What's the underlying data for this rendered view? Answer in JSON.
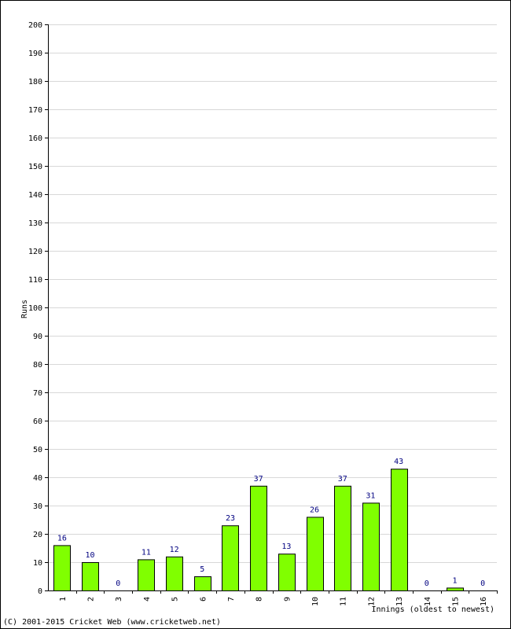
{
  "chart_data": {
    "type": "bar",
    "categories": [
      "1",
      "2",
      "3",
      "4",
      "5",
      "6",
      "7",
      "8",
      "9",
      "10",
      "11",
      "12",
      "13",
      "14",
      "15",
      "16"
    ],
    "values": [
      16,
      10,
      0,
      11,
      12,
      5,
      23,
      37,
      13,
      26,
      37,
      31,
      43,
      0,
      1,
      0
    ],
    "xlabel": "Innings (oldest to newest)",
    "ylabel": "Runs",
    "ylim": [
      0,
      200
    ],
    "yticks": [
      0,
      10,
      20,
      30,
      40,
      50,
      60,
      70,
      80,
      90,
      100,
      110,
      120,
      130,
      140,
      150,
      160,
      170,
      180,
      190,
      200
    ],
    "grid": true,
    "data_labels": true
  },
  "colors": {
    "bar_fill": "#80ff00",
    "bar_stroke": "#000000",
    "value_label": "#000080",
    "grid": "#d8d8d8"
  },
  "footer": {
    "copyright": "(C) 2001-2015 Cricket Web (www.cricketweb.net)"
  }
}
